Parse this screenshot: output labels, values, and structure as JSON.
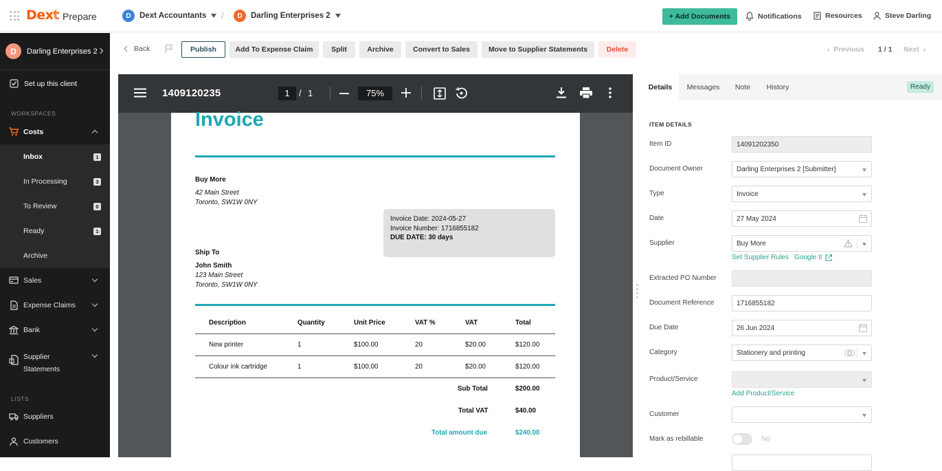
{
  "topbar": {
    "logo": "Dext",
    "app": "Prepare",
    "org": {
      "initial": "D",
      "name": "Dext Accountants"
    },
    "client": {
      "initial": "D",
      "name": "Darling Enterprises 2"
    },
    "add_documents": "+ Add Documents",
    "notifications": "Notifications",
    "resources": "Resources",
    "user": "Steve Darling"
  },
  "sidebar": {
    "client": {
      "initial": "D",
      "name": "Darling Enterprises 2"
    },
    "setup": "Set up this client",
    "workspaces_label": "WORKSPACES",
    "costs": "Costs",
    "sub_items": [
      {
        "label": "Inbox",
        "count": "1"
      },
      {
        "label": "In Processing",
        "count": "3"
      },
      {
        "label": "To Review",
        "count": "0"
      },
      {
        "label": "Ready",
        "count": "1"
      },
      {
        "label": "Archive",
        "count": ""
      }
    ],
    "sales": "Sales",
    "expense_claims": "Expense Claims",
    "bank": "Bank",
    "supplier_statements_1": "Supplier",
    "supplier_statements_2": "Statements",
    "lists_label": "LISTS",
    "suppliers": "Suppliers",
    "customers": "Customers"
  },
  "toolbar": {
    "back": "Back",
    "publish": "Publish",
    "add_expense": "Add To Expense Claim",
    "split": "Split",
    "archive": "Archive",
    "convert": "Convert to Sales",
    "move": "Move to Supplier Statements",
    "delete": "Delete",
    "previous": "Previous",
    "page_count": "1 / 1",
    "next": "Next"
  },
  "viewer": {
    "filename": "1409120235",
    "page": "1",
    "of": "/",
    "total": "1",
    "zoom": "75%"
  },
  "invoice": {
    "title": "Invoice",
    "from_name": "Buy More",
    "from_addr1": "42 Main Street",
    "from_addr2": "Toronto, SW1W 0NY",
    "box_date": "Invoice Date: 2024-05-27",
    "box_number": "Invoice Number: 1716855182",
    "box_due": "DUE DATE: 30 days",
    "ship_to": "Ship To",
    "to_name": "John Smith",
    "to_addr1": "123 Main Street",
    "to_addr2": "Toronto, SW1W 0NY",
    "headers": [
      "Description",
      "Quantity",
      "Unit Price",
      "VAT %",
      "VAT",
      "Total"
    ],
    "rows": [
      [
        "New printer",
        "1",
        "$100.00",
        "20",
        "$20.00",
        "$120.00"
      ],
      [
        "Colour ink cartridge",
        "1",
        "$100.00",
        "20",
        "$20.00",
        "$120.00"
      ]
    ],
    "subtotal_label": "Sub Total",
    "subtotal": "$200.00",
    "vat_label": "Total VAT",
    "vat": "$40.00",
    "total_label": "Total amount due",
    "total": "$240.00"
  },
  "panel": {
    "tabs": [
      "Details",
      "Messages",
      "Note",
      "History"
    ],
    "status": "Ready",
    "section": "ITEM DETAILS",
    "fields": {
      "item_id": {
        "label": "Item ID",
        "value": "14091202350"
      },
      "owner": {
        "label": "Document Owner",
        "value": "Darling Enterprises 2 [Submitter]"
      },
      "type": {
        "label": "Type",
        "value": "Invoice"
      },
      "date": {
        "label": "Date",
        "value": "27 May 2024"
      },
      "supplier": {
        "label": "Supplier",
        "value": "Buy More"
      },
      "po": {
        "label": "Extracted PO Number",
        "value": ""
      },
      "doc_ref": {
        "label": "Document Reference",
        "value": "1716855182"
      },
      "due_date": {
        "label": "Due Date",
        "value": "26 Jun 2024"
      },
      "category": {
        "label": "Category",
        "value": "Stationery and printing"
      },
      "product": {
        "label": "Product/Service",
        "value": ""
      },
      "customer": {
        "label": "Customer",
        "value": ""
      },
      "rebillable": {
        "label": "Mark as rebillable",
        "value": "No"
      }
    },
    "set_supplier_rules": "Set Supplier Rules",
    "google_it": "Google It",
    "add_product": "Add Product/Service"
  },
  "colors": {
    "brand": "#ff5a00",
    "accent": "#3ebb9c",
    "invoice_teal": "#1fa7b5"
  }
}
